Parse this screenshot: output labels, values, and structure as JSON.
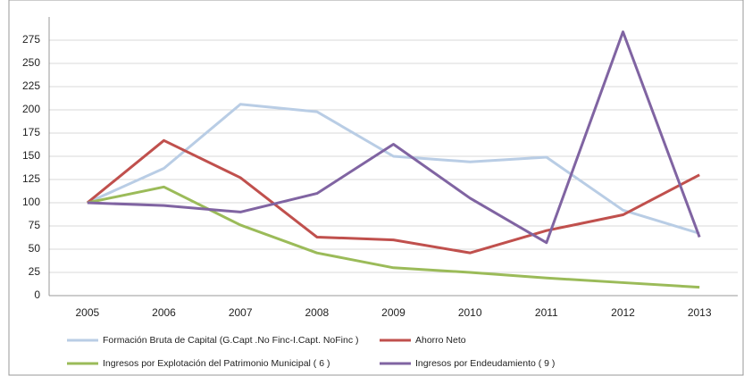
{
  "chart_data": {
    "type": "line",
    "categories": [
      "2005",
      "2006",
      "2007",
      "2008",
      "2009",
      "2010",
      "2011",
      "2012",
      "2013"
    ],
    "series": [
      {
        "name": "Formación Bruta de Capital  (G.Capt .No Finc-I.Capt. NoFinc )",
        "color": "#b9cde5",
        "values": [
          100,
          137,
          206,
          198,
          150,
          144,
          149,
          92,
          67
        ]
      },
      {
        "name": "Ahorro Neto",
        "color": "#c0504d",
        "values": [
          100,
          167,
          127,
          63,
          60,
          46,
          70,
          87,
          130
        ]
      },
      {
        "name": "Ingresos por Explotación del Patrimonio Municipal ( 6 )",
        "color": "#9bbb59",
        "values": [
          100,
          117,
          76,
          46,
          30,
          25,
          19,
          14,
          9
        ]
      },
      {
        "name": "Ingresos por Endeudamiento ( 9 )",
        "color": "#8064a2",
        "values": [
          100,
          97,
          90,
          110,
          163,
          105,
          57,
          284,
          63
        ]
      }
    ],
    "ylim": [
      0,
      300
    ],
    "yticks": [
      0,
      25,
      50,
      75,
      100,
      125,
      150,
      175,
      200,
      225,
      250,
      275
    ],
    "grid": true
  }
}
